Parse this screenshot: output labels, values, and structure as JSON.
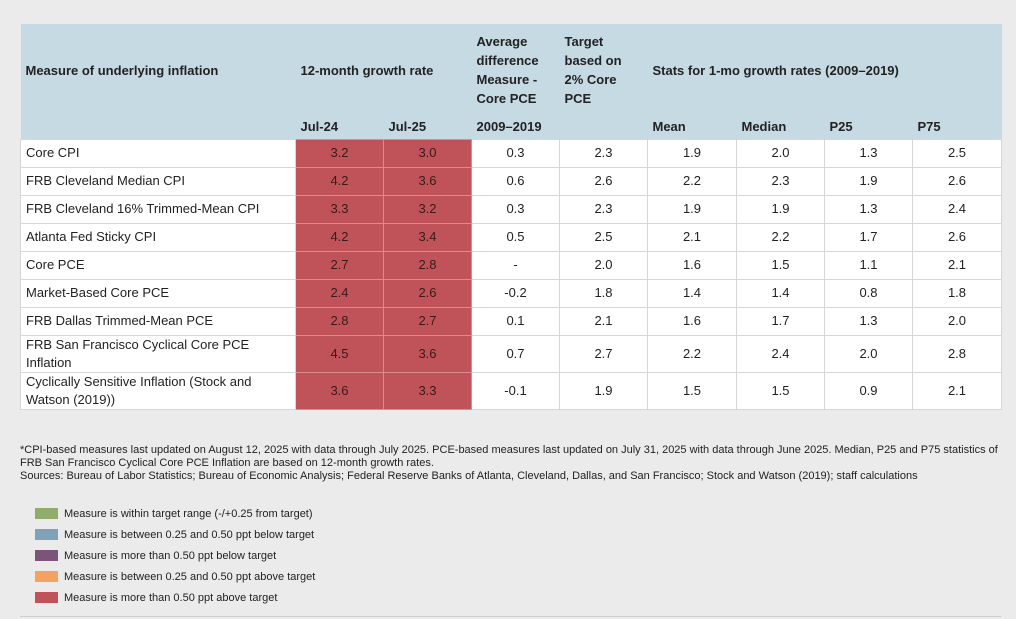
{
  "table": {
    "header": {
      "measure": "Measure of underlying inflation",
      "growth": "12-month growth rate",
      "avg_diff": "Average difference Measure - Core PCE",
      "target": "Target based on 2% Core PCE",
      "stats": "Stats for 1-mo growth rates (2009–2019)",
      "subheaders": [
        "Jul-24",
        "Jul-25",
        "2009–2019",
        "Mean",
        "Median",
        "P25",
        "P75"
      ]
    },
    "rows": [
      [
        "Core CPI",
        "3.2",
        "3.0",
        "0.3",
        "2.3",
        "1.9",
        "2.0",
        "1.3",
        "2.5"
      ],
      [
        "FRB Cleveland Median CPI",
        "4.2",
        "3.6",
        "0.6",
        "2.6",
        "2.2",
        "2.3",
        "1.9",
        "2.6"
      ],
      [
        "FRB Cleveland 16% Trimmed-Mean CPI",
        "3.3",
        "3.2",
        "0.3",
        "2.3",
        "1.9",
        "1.9",
        "1.3",
        "2.4"
      ],
      [
        "Atlanta Fed Sticky CPI",
        "4.2",
        "3.4",
        "0.5",
        "2.5",
        "2.1",
        "2.2",
        "1.7",
        "2.6"
      ],
      [
        "Core PCE",
        "2.7",
        "2.8",
        "-",
        "2.0",
        "1.6",
        "1.5",
        "1.1",
        "2.1"
      ],
      [
        "Market-Based Core PCE",
        "2.4",
        "2.6",
        "-0.2",
        "1.8",
        "1.4",
        "1.4",
        "0.8",
        "1.8"
      ],
      [
        "FRB Dallas Trimmed-Mean PCE",
        "2.8",
        "2.7",
        "0.1",
        "2.1",
        "1.6",
        "1.7",
        "1.3",
        "2.0"
      ],
      [
        "FRB San Francisco Cyclical Core PCE Inflation",
        "4.5",
        "3.6",
        "0.7",
        "2.7",
        "2.2",
        "2.4",
        "2.0",
        "2.8"
      ],
      [
        "Cyclically Sensitive Inflation (Stock and Watson (2019))",
        "3.6",
        "3.3",
        "-0.1",
        "1.9",
        "1.5",
        "1.5",
        "0.9",
        "2.1"
      ]
    ]
  },
  "notes": [
    "*CPI-based measures last updated on August 12, 2025 with data through July 2025. PCE-based measures last updated on July 31, 2025 with data through June 2025. Median, P25 and P75 statistics of FRB San Francisco Cyclical Core PCE Inflation are based on 12-month growth rates.",
    "Sources: Bureau of Labor Statistics; Bureau of Economic Analysis; Federal Reserve Banks of Atlanta, Cleveland, Dallas, and San Francisco; Stock and Watson (2019); staff calculations"
  ],
  "legend": [
    {
      "label": "Measure is within target range (-/+0.25 from target)",
      "color": "#8fac6b"
    },
    {
      "label": "Measure is between 0.25 and 0.50 ppt below target",
      "color": "#7fa2b8"
    },
    {
      "label": "Measure is more than 0.50 ppt below target",
      "color": "#7b5579"
    },
    {
      "label": "Measure is between 0.25 and 0.50 ppt above target",
      "color": "#f3a25f"
    },
    {
      "label": "Measure is more than 0.50 ppt above target",
      "color": "#c0535a"
    }
  ]
}
